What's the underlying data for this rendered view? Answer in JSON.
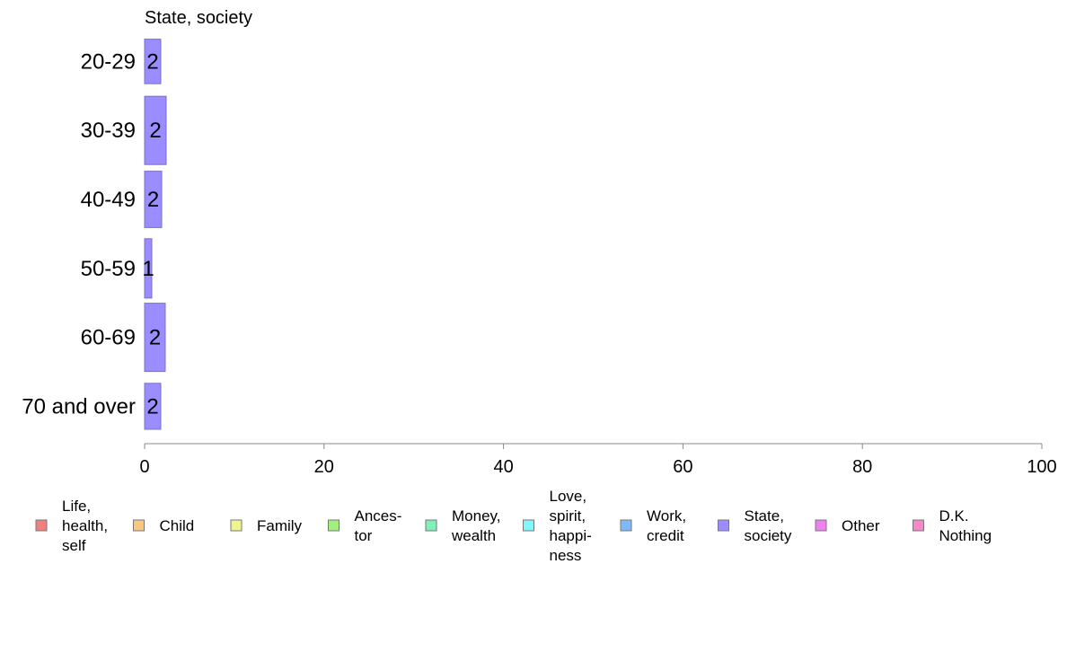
{
  "chart_data": {
    "type": "bar",
    "orientation": "horizontal",
    "title": "State, society",
    "categories": [
      "20-29",
      "30-39",
      "40-49",
      "50-59",
      "60-69",
      "70 and over"
    ],
    "series": [
      {
        "name": "State, society",
        "values": [
          1.8,
          2.4,
          1.9,
          0.8,
          2.3,
          1.8
        ],
        "labels": [
          "2",
          "2",
          "2",
          "1",
          "2",
          "2"
        ],
        "color": "#9b8cff"
      }
    ],
    "bar_widths": [
      3,
      4.6,
      3.8,
      4,
      4.6,
      3.1
    ],
    "xlim": [
      0,
      100
    ],
    "xticks": [
      "0",
      "20",
      "40",
      "60",
      "80",
      "100"
    ],
    "xtick_values": [
      0,
      20,
      40,
      60,
      80,
      100
    ],
    "grid": false,
    "legend_position": "bottom",
    "legend": [
      {
        "lines": [
          "Life,",
          "health,",
          "self"
        ],
        "color": "#f08080"
      },
      {
        "lines": [
          "Child"
        ],
        "color": "#f8c880"
      },
      {
        "lines": [
          "Family"
        ],
        "color": "#eef590"
      },
      {
        "lines": [
          "Ances-",
          "tor"
        ],
        "color": "#a0f080"
      },
      {
        "lines": [
          "Money,",
          "wealth"
        ],
        "color": "#80f0b8"
      },
      {
        "lines": [
          "Love,",
          "spirit,",
          "happi-",
          "ness"
        ],
        "color": "#80f8f8"
      },
      {
        "lines": [
          "Work,",
          "credit"
        ],
        "color": "#80b8f8"
      },
      {
        "lines": [
          "State,",
          "society"
        ],
        "color": "#9b8cff"
      },
      {
        "lines": [
          "Other"
        ],
        "color": "#ee80f0"
      },
      {
        "lines": [
          "D.K.",
          "Nothing"
        ],
        "color": "#f488c8"
      }
    ]
  }
}
